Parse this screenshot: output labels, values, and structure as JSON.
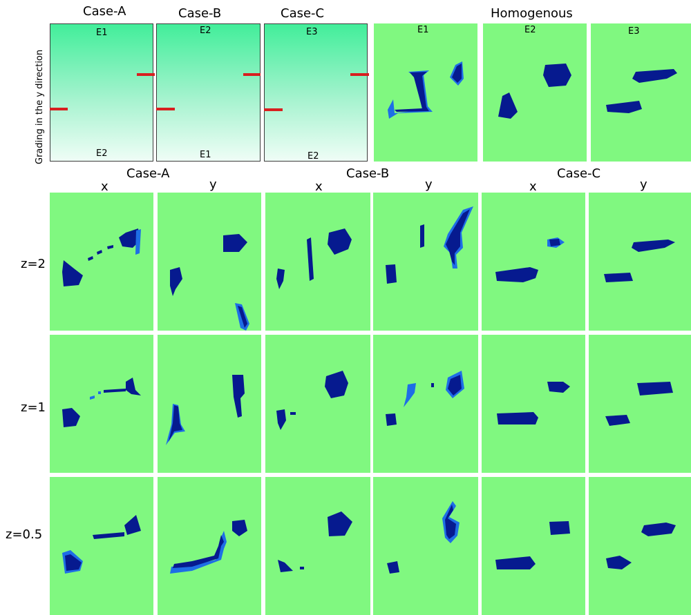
{
  "top_row": {
    "case_headers": [
      "Case-A",
      "Case-B",
      "Case-C"
    ],
    "homogenous_header": "Homogenous",
    "y_axis_label": "Grading in the y direction",
    "grading_panels": [
      {
        "top": "E1",
        "bottom": "E2"
      },
      {
        "top": "E2",
        "bottom": "E1"
      },
      {
        "top": "E3",
        "bottom": "E2"
      }
    ],
    "homogenous_panels": [
      "E1",
      "E2",
      "E3"
    ]
  },
  "grid": {
    "case_headers": [
      "Case-A",
      "Case-B",
      "Case-C"
    ],
    "column_labels": [
      "x",
      "y",
      "x",
      "y",
      "x",
      "y"
    ],
    "row_labels": [
      "z=2",
      "z=1",
      "z=0.5"
    ]
  },
  "colors": {
    "background": "#80f880",
    "inclusion": "#061a8f",
    "inclusion_edge": "#1e6ee6",
    "grading_top": "#42ee9a",
    "grading_bottom": "#effdf6",
    "interface_line": "#d81f1f"
  }
}
